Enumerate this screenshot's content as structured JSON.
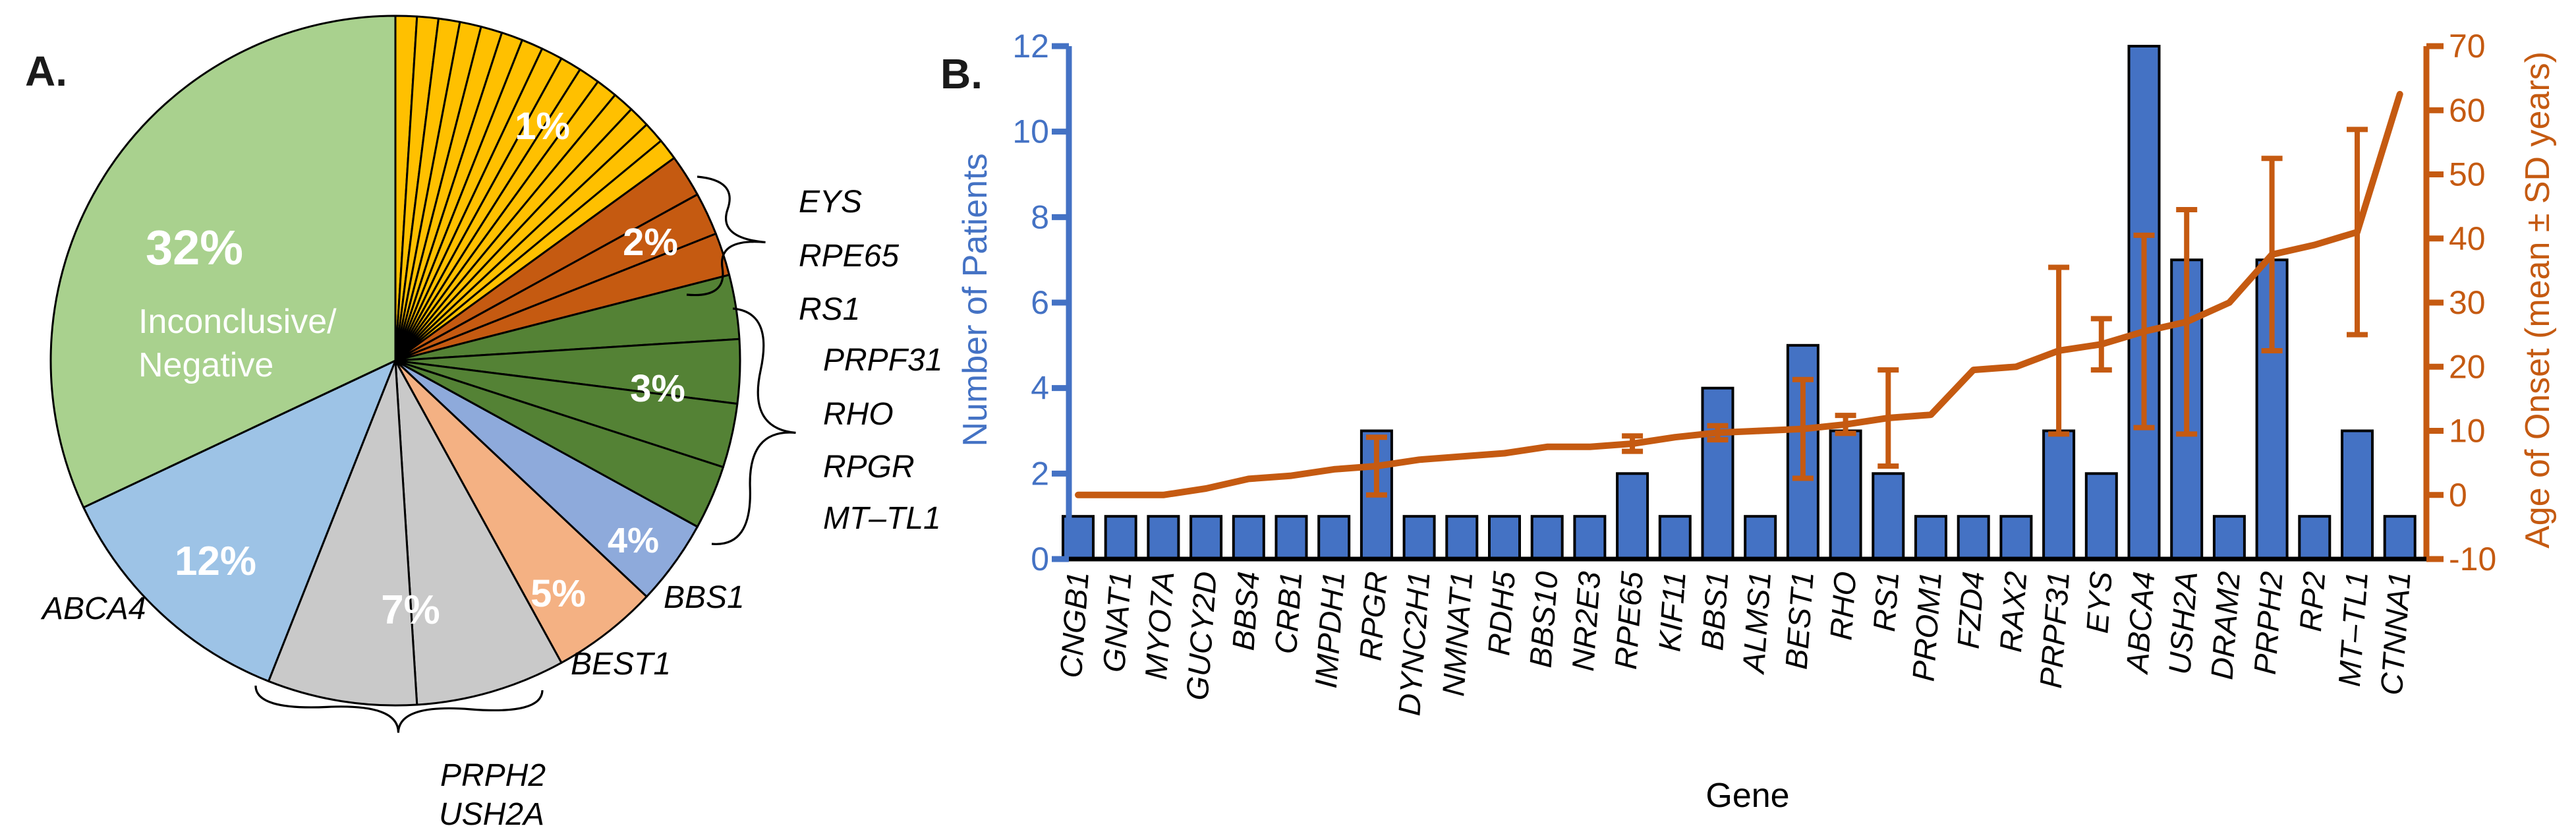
{
  "figure": {
    "panel_a_label": "A.",
    "panel_b_label": "B."
  },
  "colors": {
    "bar_fill": "#4472C4",
    "left_axis": "#4472C4",
    "line_and_right_axis": "#C55A11",
    "pie_yellow": "#FFC000",
    "pie_dark_orange": "#C55A11",
    "pie_dark_green": "#548235",
    "pie_periwinkle": "#8EAADB",
    "pie_light_orange": "#F4B183",
    "pie_gray": "#C9C9C9",
    "pie_light_blue": "#9DC3E6",
    "pie_light_green": "#A9D18E",
    "outline": "#000000"
  },
  "chart_data": [
    {
      "type": "pie",
      "start_angle_deg": 0,
      "direction": "clockwise",
      "slice_groups": [
        {
          "percent_label": "1%",
          "slices": 15,
          "percent_each": 1,
          "color": "#FFC000",
          "genes": []
        },
        {
          "percent_label": "2%",
          "slices": 3,
          "percent_each": 2,
          "color": "#C55A11",
          "genes": [
            "EYS",
            "RPE65",
            "RS1"
          ]
        },
        {
          "percent_label": "3%",
          "slices": 4,
          "percent_each": 3,
          "color": "#548235",
          "genes": [
            "PRPF31",
            "RHO",
            "RPGR",
            "MT–TL1"
          ]
        },
        {
          "percent_label": "4%",
          "slices": 1,
          "percent_each": 4,
          "color": "#8EAADB",
          "genes": [
            "BBS1"
          ]
        },
        {
          "percent_label": "5%",
          "slices": 1,
          "percent_each": 5,
          "color": "#F4B183",
          "genes": [
            "BEST1"
          ]
        },
        {
          "percent_label": "7%",
          "slices": 2,
          "percent_each": 7,
          "color": "#C9C9C9",
          "genes": [
            "PRPH2",
            "USH2A"
          ]
        },
        {
          "percent_label": "12%",
          "slices": 1,
          "percent_each": 12,
          "color": "#9DC3E6",
          "genes": [
            "ABCA4"
          ]
        },
        {
          "percent_label": "32%",
          "slices": 1,
          "percent_each": 32,
          "color": "#A9D18E",
          "genes": [
            "Inconclusive/Negative"
          ]
        }
      ],
      "center_label": {
        "percent": "32%",
        "line1": "Inconclusive/",
        "line2": "Negative"
      },
      "callouts": [
        "EYS",
        "RPE65",
        "RS1",
        "PRPF31",
        "RHO",
        "RPGR",
        "MT–TL1",
        "BBS1",
        "BEST1",
        "ABCA4",
        "PRPH2",
        "USH2A"
      ]
    },
    {
      "type": "combo-bar-line",
      "categories": [
        "CNGB1",
        "GNAT1",
        "MYO7A",
        "GUCY2D",
        "BBS4",
        "CRB1",
        "IMPDH1",
        "RPGR",
        "DYNC2H1",
        "NMNAT1",
        "RDH5",
        "BBS10",
        "NR2E3",
        "RPE65",
        "KIF11",
        "BBS1",
        "ALMS1",
        "BEST1",
        "RHO",
        "RS1",
        "PROM1",
        "FZD4",
        "RAX2",
        "PRPF31",
        "EYS",
        "ABCA4",
        "USH2A",
        "DRAM2",
        "PRPH2",
        "RP2",
        "MT–TL1",
        "CTNNA1"
      ],
      "series": [
        {
          "name": "Number of Patients",
          "type": "bar",
          "axis": "left",
          "values": [
            1,
            1,
            1,
            1,
            1,
            1,
            1,
            3,
            1,
            1,
            1,
            1,
            1,
            2,
            1,
            4,
            1,
            5,
            3,
            2,
            1,
            1,
            1,
            3,
            2,
            12,
            7,
            1,
            7,
            1,
            3,
            1
          ]
        },
        {
          "name": "Age of Onset (mean ± SD years)",
          "type": "line",
          "axis": "right",
          "values": [
            0,
            0,
            0,
            1,
            2.5,
            3,
            4,
            4.5,
            5.5,
            6,
            6.5,
            7.5,
            7.5,
            8,
            9,
            9.7,
            10,
            10.3,
            11,
            12,
            12.5,
            19.5,
            20,
            22.5,
            23.5,
            25.5,
            27,
            30,
            37.5,
            39,
            41,
            62.5
          ],
          "sd": [
            null,
            null,
            null,
            null,
            null,
            null,
            null,
            4.5,
            null,
            null,
            null,
            null,
            null,
            1.2,
            null,
            1.1,
            null,
            7.7,
            1.4,
            7.5,
            null,
            null,
            null,
            13,
            4,
            15,
            17.5,
            null,
            15,
            null,
            16,
            null
          ]
        }
      ],
      "left_axis": {
        "label": "Number of Patients",
        "min": 0,
        "max": 12,
        "tick_step": 2,
        "ticks": [
          0,
          2,
          4,
          6,
          8,
          10,
          12
        ],
        "color": "#4472C4"
      },
      "right_axis": {
        "label": "Age of Onset (mean ± SD years)",
        "min": -10,
        "max": 70,
        "tick_step": 10,
        "ticks": [
          -10,
          0,
          10,
          20,
          30,
          40,
          50,
          60,
          70
        ],
        "color": "#C55A11"
      },
      "xlabel": "Gene",
      "grid": false,
      "legend": "none"
    }
  ]
}
